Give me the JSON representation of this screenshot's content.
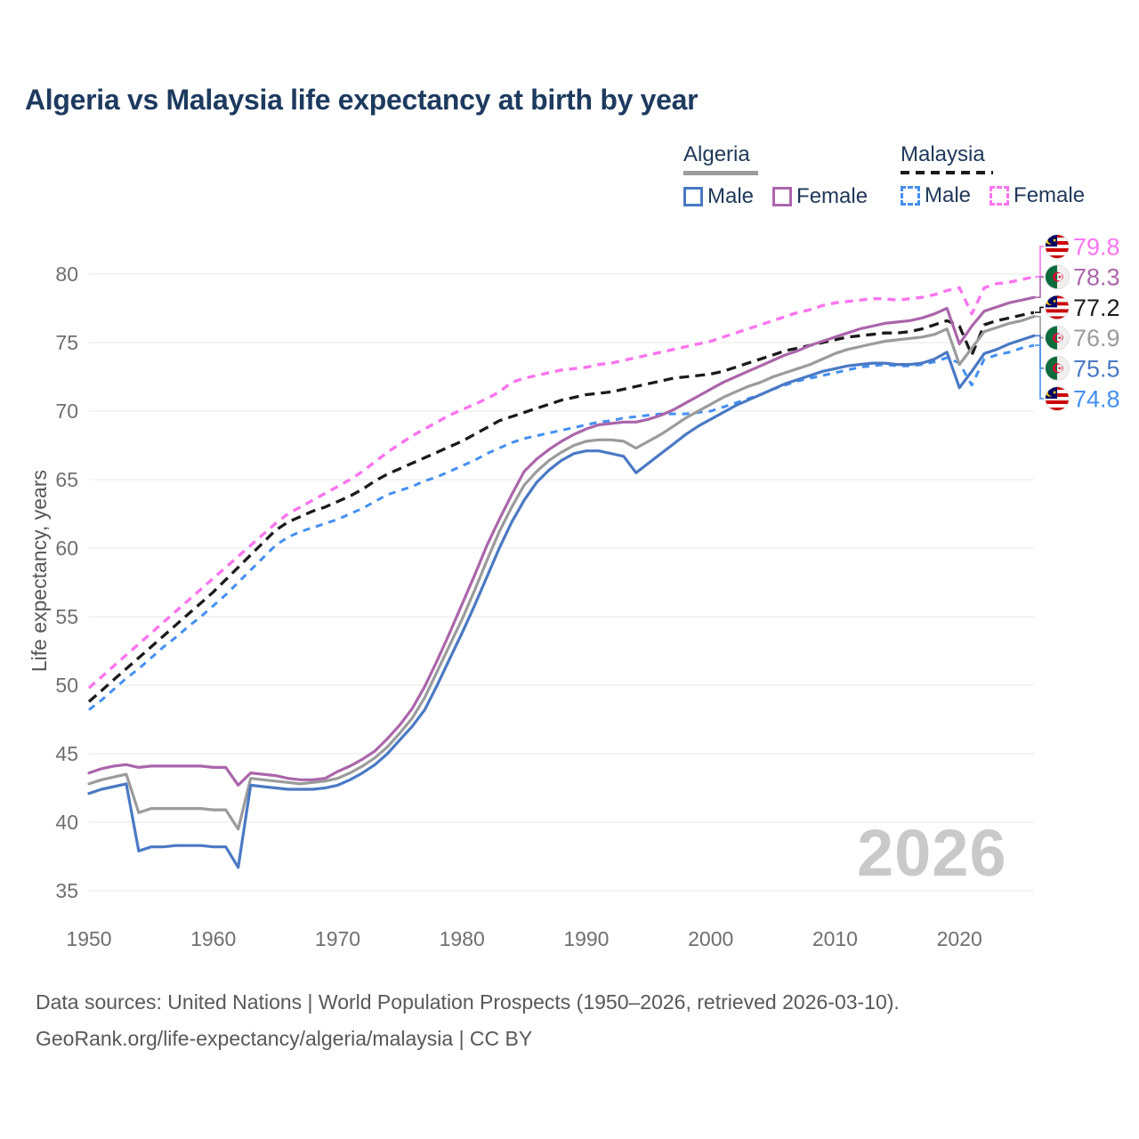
{
  "title": "Algeria vs Malaysia life expectancy at birth by year",
  "watermark": "2026",
  "y_axis_label": "Life expectancy, years",
  "legend": {
    "algeria": {
      "label": "Algeria",
      "male": "Male",
      "female": "Female"
    },
    "malaysia": {
      "label": "Malaysia",
      "male": "Male",
      "female": "Female"
    }
  },
  "footer": {
    "line1": "Data sources: United Nations | World Population Prospects (1950–2026, retrieved 2026-03-10).",
    "line2": "GeoRank.org/life-expectancy/algeria/malaysia | CC BY"
  },
  "colors": {
    "title": "#1d3a5f",
    "legend_text": "#20395a",
    "axis_text": "#6f6f6f",
    "grid": "#ececec",
    "footer": "#58585a",
    "watermark": "#c9c9c9",
    "algeria_underline": "#9b9b9b",
    "malaysia_underline": "#1a1a1a",
    "algeria_male": "#4a79c4",
    "algeria_female": "#ab65ab",
    "algeria_all": "#9b9b9b",
    "malaysia_male": "#448ff2",
    "malaysia_female": "#fb74ef",
    "malaysia_all": "#1a1a1a",
    "flag_my_blue": "#010066",
    "flag_my_red": "#cc0001",
    "flag_my_yellow": "#ffcc00",
    "flag_dz_green": "#0b6b3a",
    "flag_dz_red": "#d21034"
  },
  "chart_data": {
    "type": "line",
    "title": "Algeria vs Malaysia life expectancy at birth by year",
    "xlabel": "",
    "ylabel": "Life expectancy, years",
    "grid": "horizontal",
    "legend_position": "top-right",
    "years": {
      "start": 1950,
      "end": 2026,
      "step": 1
    },
    "xticks": [
      1950,
      1960,
      1970,
      1980,
      1990,
      2000,
      2010,
      2020
    ],
    "yticks": [
      35,
      40,
      45,
      50,
      55,
      60,
      65,
      70,
      75,
      80
    ],
    "ylim": [
      33.5,
      81.5
    ],
    "series": [
      {
        "id": "malaysia-female",
        "country": "Malaysia",
        "sex": "Female",
        "flag": "my",
        "style": "dashed",
        "dash": "9 7",
        "width": 3.4,
        "color": "#fb74ef",
        "end_label": "79.8",
        "values": [
          49.8,
          50.6,
          51.4,
          52.2,
          53.0,
          53.8,
          54.6,
          55.4,
          56.2,
          57.0,
          57.8,
          58.6,
          59.4,
          60.2,
          61.0,
          61.8,
          62.5,
          63.0,
          63.5,
          64.0,
          64.5,
          65.0,
          65.6,
          66.3,
          67.0,
          67.6,
          68.2,
          68.7,
          69.2,
          69.7,
          70.1,
          70.5,
          70.9,
          71.4,
          72.1,
          72.4,
          72.6,
          72.8,
          73.0,
          73.1,
          73.2,
          73.4,
          73.5,
          73.7,
          73.9,
          74.1,
          74.3,
          74.5,
          74.7,
          74.9,
          75.1,
          75.4,
          75.7,
          76.0,
          76.3,
          76.6,
          76.9,
          77.2,
          77.4,
          77.7,
          77.9,
          78.0,
          78.1,
          78.2,
          78.2,
          78.1,
          78.2,
          78.3,
          78.5,
          78.8,
          79.0,
          77.1,
          79.0,
          79.3,
          79.4,
          79.6,
          79.8
        ]
      },
      {
        "id": "malaysia-all",
        "country": "Malaysia",
        "sex": "All",
        "flag": "my",
        "style": "dashed",
        "dash": "11 7",
        "width": 3.3,
        "color": "#1a1a1a",
        "end_label": "77.2",
        "values": [
          48.8,
          49.6,
          50.4,
          51.2,
          52.0,
          52.8,
          53.6,
          54.4,
          55.2,
          56.0,
          56.8,
          57.7,
          58.6,
          59.5,
          60.4,
          61.3,
          61.9,
          62.3,
          62.7,
          63.0,
          63.4,
          63.8,
          64.3,
          64.9,
          65.4,
          65.8,
          66.2,
          66.6,
          67.0,
          67.4,
          67.8,
          68.3,
          68.8,
          69.3,
          69.6,
          69.9,
          70.2,
          70.5,
          70.8,
          71.0,
          71.2,
          71.3,
          71.4,
          71.6,
          71.8,
          72.0,
          72.2,
          72.4,
          72.5,
          72.6,
          72.7,
          72.9,
          73.2,
          73.5,
          73.8,
          74.1,
          74.4,
          74.6,
          74.8,
          75.0,
          75.2,
          75.4,
          75.5,
          75.6,
          75.7,
          75.7,
          75.8,
          76.0,
          76.3,
          76.6,
          76.2,
          74.1,
          76.3,
          76.6,
          76.8,
          77.0,
          77.2
        ]
      },
      {
        "id": "malaysia-male",
        "country": "Malaysia",
        "sex": "Male",
        "flag": "my",
        "style": "dashed",
        "dash": "8 7",
        "width": 3.0,
        "color": "#448ff2",
        "end_label": "74.8",
        "values": [
          48.2,
          48.9,
          49.7,
          50.5,
          51.2,
          52.0,
          52.8,
          53.5,
          54.3,
          55.0,
          55.8,
          56.6,
          57.5,
          58.4,
          59.3,
          60.2,
          60.8,
          61.2,
          61.5,
          61.8,
          62.1,
          62.5,
          62.9,
          63.4,
          63.9,
          64.2,
          64.5,
          64.9,
          65.2,
          65.6,
          66.0,
          66.4,
          66.9,
          67.3,
          67.7,
          68.0,
          68.2,
          68.4,
          68.6,
          68.8,
          69.0,
          69.2,
          69.3,
          69.5,
          69.6,
          69.7,
          69.8,
          69.8,
          69.8,
          69.9,
          70.0,
          70.3,
          70.6,
          70.9,
          71.2,
          71.6,
          71.9,
          72.2,
          72.4,
          72.6,
          72.8,
          73.0,
          73.2,
          73.3,
          73.4,
          73.3,
          73.3,
          73.4,
          73.6,
          73.9,
          73.5,
          71.9,
          73.8,
          74.1,
          74.3,
          74.6,
          74.8
        ]
      },
      {
        "id": "algeria-female",
        "country": "Algeria",
        "sex": "Female",
        "flag": "dz",
        "style": "solid",
        "dash": "",
        "width": 3.2,
        "color": "#ab65ab",
        "end_label": "78.3",
        "values": [
          43.6,
          43.9,
          44.1,
          44.2,
          44.0,
          44.1,
          44.1,
          44.1,
          44.1,
          44.1,
          44.0,
          44.0,
          42.7,
          43.6,
          43.5,
          43.4,
          43.2,
          43.1,
          43.1,
          43.2,
          43.7,
          44.1,
          44.6,
          45.2,
          46.1,
          47.1,
          48.3,
          49.9,
          51.8,
          53.8,
          55.9,
          58.0,
          60.2,
          62.1,
          63.9,
          65.6,
          66.5,
          67.2,
          67.8,
          68.3,
          68.7,
          69.0,
          69.1,
          69.2,
          69.2,
          69.4,
          69.7,
          70.1,
          70.6,
          71.1,
          71.6,
          72.1,
          72.5,
          72.9,
          73.3,
          73.7,
          74.1,
          74.4,
          74.8,
          75.1,
          75.4,
          75.7,
          76.0,
          76.2,
          76.4,
          76.5,
          76.6,
          76.8,
          77.1,
          77.5,
          74.9,
          76.2,
          77.3,
          77.6,
          77.9,
          78.1,
          78.3
        ]
      },
      {
        "id": "algeria-all",
        "country": "Algeria",
        "sex": "All",
        "flag": "dz",
        "style": "solid",
        "dash": "",
        "width": 3.2,
        "color": "#9b9b9b",
        "end_label": "76.9",
        "values": [
          42.8,
          43.1,
          43.3,
          43.5,
          40.7,
          41.0,
          41.0,
          41.0,
          41.0,
          41.0,
          40.9,
          40.9,
          39.5,
          43.2,
          43.1,
          43.0,
          42.9,
          42.8,
          42.9,
          43.0,
          43.2,
          43.6,
          44.1,
          44.7,
          45.5,
          46.5,
          47.6,
          49.1,
          51.0,
          52.9,
          54.8,
          56.9,
          59.1,
          61.2,
          63.0,
          64.6,
          65.6,
          66.4,
          67.0,
          67.5,
          67.8,
          67.9,
          67.9,
          67.8,
          67.3,
          67.8,
          68.3,
          68.9,
          69.5,
          70.0,
          70.5,
          71.0,
          71.4,
          71.8,
          72.1,
          72.5,
          72.8,
          73.1,
          73.4,
          73.8,
          74.2,
          74.5,
          74.7,
          74.9,
          75.1,
          75.2,
          75.3,
          75.4,
          75.6,
          76.0,
          73.4,
          74.6,
          75.8,
          76.1,
          76.4,
          76.6,
          76.9
        ]
      },
      {
        "id": "algeria-male",
        "country": "Algeria",
        "sex": "Male",
        "flag": "dz",
        "style": "solid",
        "dash": "",
        "width": 3.2,
        "color": "#4a79c4",
        "end_label": "75.5",
        "values": [
          42.1,
          42.4,
          42.6,
          42.8,
          37.9,
          38.2,
          38.2,
          38.3,
          38.3,
          38.3,
          38.2,
          38.2,
          36.7,
          42.7,
          42.6,
          42.5,
          42.4,
          42.4,
          42.4,
          42.5,
          42.7,
          43.1,
          43.6,
          44.2,
          45.0,
          46.0,
          47.0,
          48.2,
          50.0,
          51.9,
          53.8,
          55.8,
          57.9,
          60.0,
          61.9,
          63.5,
          64.8,
          65.7,
          66.4,
          66.9,
          67.1,
          67.1,
          66.9,
          66.7,
          65.5,
          66.2,
          66.9,
          67.6,
          68.3,
          68.9,
          69.4,
          69.9,
          70.4,
          70.8,
          71.2,
          71.6,
          72.0,
          72.3,
          72.6,
          72.9,
          73.1,
          73.3,
          73.4,
          73.5,
          73.5,
          73.4,
          73.4,
          73.5,
          73.8,
          74.3,
          71.7,
          72.9,
          74.2,
          74.5,
          74.9,
          75.2,
          75.5
        ]
      }
    ]
  }
}
